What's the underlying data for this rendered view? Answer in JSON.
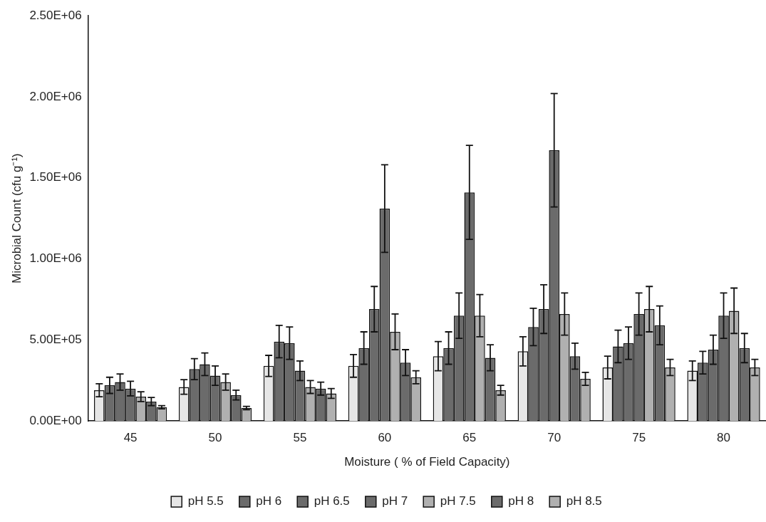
{
  "chart_data": {
    "type": "bar",
    "xlabel": "Moisture ( % of Field Capacity)",
    "ylabel": "Microbial Count (cfu g⁻¹)",
    "categories": [
      "45",
      "50",
      "55",
      "60",
      "65",
      "70",
      "75",
      "80"
    ],
    "ylim": [
      0,
      2500000
    ],
    "yticks": [
      {
        "value": 0,
        "label": "0.00E+00"
      },
      {
        "value": 500000,
        "label": "5.00E+05"
      },
      {
        "value": 1000000,
        "label": "1.00E+06"
      },
      {
        "value": 1500000,
        "label": "1.50E+06"
      },
      {
        "value": 2000000,
        "label": "2.00E+06"
      },
      {
        "value": 2500000,
        "label": "2.50E+06"
      }
    ],
    "grid": false,
    "legend": "bottom",
    "series": [
      {
        "name": "pH 5.5",
        "color": "#e6e6e6",
        "values": [
          190000,
          210000,
          340000,
          340000,
          400000,
          430000,
          330000,
          310000
        ],
        "errors": [
          40000,
          45000,
          65000,
          70000,
          90000,
          90000,
          70000,
          60000
        ]
      },
      {
        "name": "pH 6",
        "color": "#6b6b6b",
        "values": [
          220000,
          320000,
          490000,
          450000,
          450000,
          580000,
          460000,
          360000
        ],
        "errors": [
          50000,
          65000,
          100000,
          100000,
          100000,
          115000,
          100000,
          70000
        ]
      },
      {
        "name": "pH 6.5",
        "color": "#6b6b6b",
        "values": [
          240000,
          350000,
          480000,
          690000,
          650000,
          690000,
          480000,
          440000
        ],
        "errors": [
          50000,
          70000,
          100000,
          140000,
          140000,
          150000,
          100000,
          90000
        ]
      },
      {
        "name": "pH 7",
        "color": "#6b6b6b",
        "values": [
          200000,
          280000,
          310000,
          1310000,
          1410000,
          1670000,
          660000,
          650000
        ],
        "errors": [
          45000,
          60000,
          60000,
          270000,
          290000,
          350000,
          130000,
          140000
        ]
      },
      {
        "name": "pH 7.5",
        "color": "#b0b0b0",
        "values": [
          150000,
          240000,
          210000,
          550000,
          650000,
          660000,
          690000,
          680000
        ],
        "errors": [
          30000,
          50000,
          40000,
          110000,
          130000,
          130000,
          140000,
          140000
        ]
      },
      {
        "name": "pH 8",
        "color": "#6b6b6b",
        "values": [
          120000,
          160000,
          200000,
          360000,
          390000,
          400000,
          590000,
          450000
        ],
        "errors": [
          25000,
          30000,
          40000,
          80000,
          80000,
          80000,
          120000,
          90000
        ]
      },
      {
        "name": "pH 8.5",
        "color": "#b0b0b0",
        "values": [
          85000,
          80000,
          170000,
          270000,
          190000,
          260000,
          330000,
          330000
        ],
        "errors": [
          10000,
          10000,
          30000,
          40000,
          30000,
          40000,
          50000,
          50000
        ]
      }
    ]
  }
}
